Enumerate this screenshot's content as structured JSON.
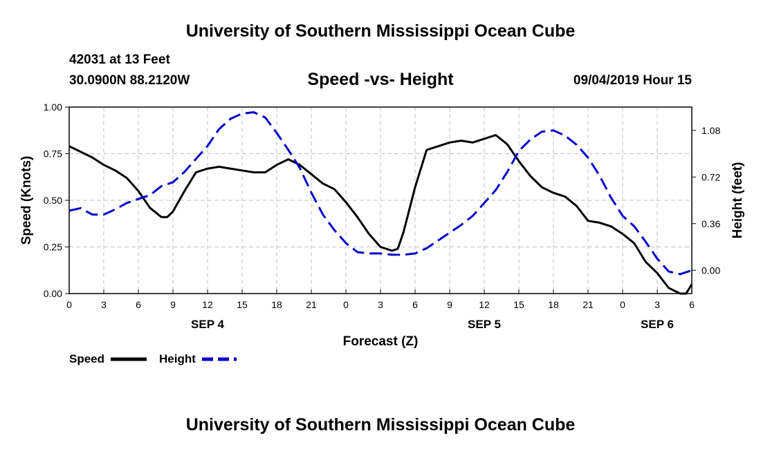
{
  "header": {
    "title": "University of Southern Mississippi Ocean Cube",
    "station": "42031 at 13 Feet",
    "coords": "30.0900N 88.2120W",
    "date": "09/04/2019 Hour 15"
  },
  "footer": {
    "title": "University of Southern Mississippi Ocean Cube"
  },
  "chart_data": {
    "type": "line",
    "title": "Speed -vs- Height",
    "xlabel": "Forecast (Z)",
    "ylabel": "Speed (Knots)",
    "y2label": "Height (feet)",
    "xlim": [
      0,
      54
    ],
    "x_ticks": [
      0,
      3,
      6,
      9,
      12,
      15,
      18,
      21,
      24,
      27,
      30,
      33,
      36,
      39,
      42,
      45,
      48,
      51,
      54
    ],
    "x_tick_labels": [
      "0",
      "3",
      "6",
      "9",
      "12",
      "15",
      "18",
      "21",
      "0",
      "3",
      "6",
      "9",
      "12",
      "15",
      "18",
      "21",
      "0",
      "3",
      "6"
    ],
    "date_labels": [
      {
        "x": 12,
        "label": "SEP 4"
      },
      {
        "x": 36,
        "label": "SEP 5"
      },
      {
        "x": 51,
        "label": "SEP 6"
      }
    ],
    "ylim": [
      0,
      1.0
    ],
    "y_ticks": [
      0,
      0.25,
      0.5,
      0.75,
      1.0
    ],
    "y_tick_labels": [
      "0.00",
      "0.25",
      "0.50",
      "0.75",
      "1.00"
    ],
    "y2lim": [
      -0.18,
      1.26
    ],
    "y2_ticks": [
      0,
      0.36,
      0.72,
      1.08
    ],
    "y2_tick_labels": [
      "0.00",
      "0.36",
      "0.72",
      "1.08"
    ],
    "grid": true,
    "legend_placement": "bottom-left",
    "series": [
      {
        "name": "Speed",
        "axis": "left",
        "color": "#000000",
        "style": "solid",
        "x": [
          0,
          1,
          2,
          3,
          4,
          5,
          6,
          7,
          8,
          8.5,
          9,
          10,
          11,
          12,
          13,
          14,
          15,
          16,
          17,
          18,
          19,
          20,
          21,
          22,
          23,
          24,
          25,
          26,
          27,
          28,
          28.5,
          29,
          30,
          31,
          32,
          33,
          34,
          35,
          36,
          37,
          38,
          39,
          40,
          41,
          42,
          43,
          44,
          45,
          46,
          47,
          48,
          49,
          50,
          51,
          52,
          53,
          53.5,
          54
        ],
        "values": [
          0.79,
          0.76,
          0.73,
          0.69,
          0.66,
          0.62,
          0.55,
          0.46,
          0.41,
          0.41,
          0.44,
          0.55,
          0.65,
          0.67,
          0.68,
          0.67,
          0.66,
          0.65,
          0.65,
          0.69,
          0.72,
          0.69,
          0.64,
          0.59,
          0.56,
          0.49,
          0.41,
          0.32,
          0.25,
          0.23,
          0.24,
          0.33,
          0.57,
          0.77,
          0.79,
          0.81,
          0.82,
          0.81,
          0.83,
          0.85,
          0.8,
          0.71,
          0.63,
          0.57,
          0.54,
          0.52,
          0.47,
          0.39,
          0.38,
          0.36,
          0.32,
          0.27,
          0.17,
          0.11,
          0.03,
          0.0,
          0.0,
          0.05
        ]
      },
      {
        "name": "Height",
        "axis": "right",
        "color": "#0000cc",
        "style": "dashed",
        "x": [
          0,
          1,
          2,
          3,
          4,
          5,
          6,
          7,
          8,
          9,
          10,
          11,
          12,
          13,
          14,
          15,
          16,
          17,
          18,
          19,
          20,
          21,
          22,
          23,
          24,
          25,
          26,
          27,
          28,
          29,
          30,
          31,
          32,
          33,
          34,
          35,
          36,
          37,
          38,
          39,
          40,
          41,
          42,
          43,
          44,
          45,
          46,
          47,
          48,
          49,
          50,
          51,
          52,
          53,
          54
        ],
        "values": [
          0.46,
          0.48,
          0.43,
          0.43,
          0.47,
          0.52,
          0.55,
          0.58,
          0.65,
          0.68,
          0.76,
          0.86,
          0.96,
          1.09,
          1.17,
          1.21,
          1.22,
          1.18,
          1.06,
          0.93,
          0.79,
          0.6,
          0.43,
          0.31,
          0.21,
          0.14,
          0.13,
          0.13,
          0.12,
          0.12,
          0.13,
          0.17,
          0.23,
          0.29,
          0.35,
          0.42,
          0.52,
          0.62,
          0.76,
          0.92,
          1.01,
          1.07,
          1.08,
          1.04,
          0.97,
          0.87,
          0.73,
          0.56,
          0.42,
          0.34,
          0.22,
          0.09,
          -0.01,
          -0.03,
          0.0
        ]
      }
    ]
  }
}
